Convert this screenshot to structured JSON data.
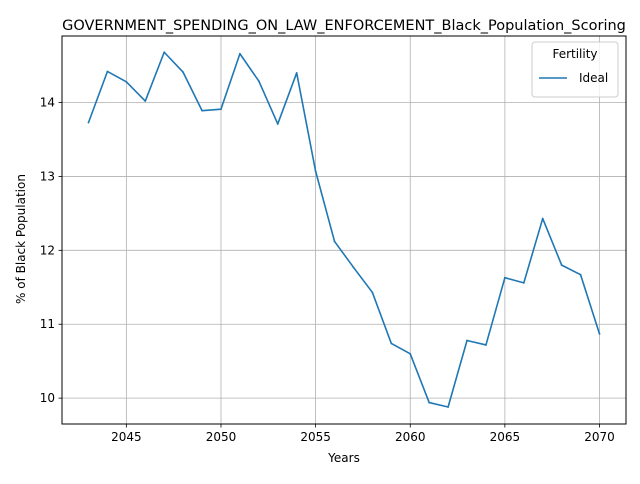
{
  "chart_data": {
    "type": "line",
    "title": "GOVERNMENT_SPENDING_ON_LAW_ENFORCEMENT_Black_Population_Scoring",
    "xlabel": "Years",
    "ylabel": "% of Black Population",
    "xlim": [
      2041.6,
      2071.4
    ],
    "ylim": [
      9.65,
      14.9
    ],
    "xticks": [
      2045,
      2050,
      2055,
      2060,
      2065,
      2070
    ],
    "yticks": [
      10,
      11,
      12,
      13,
      14
    ],
    "grid": true,
    "legend": {
      "title": "Fertility",
      "position": "top-right"
    },
    "series": [
      {
        "name": "Ideal",
        "color": "#1f77b4",
        "x": [
          2043,
          2044,
          2045,
          2046,
          2047,
          2048,
          2049,
          2050,
          2051,
          2052,
          2053,
          2054,
          2055,
          2056,
          2057,
          2058,
          2059,
          2060,
          2061,
          2062,
          2063,
          2064,
          2065,
          2066,
          2067,
          2068,
          2069,
          2070
        ],
        "y": [
          13.73,
          14.42,
          14.28,
          14.02,
          14.68,
          14.41,
          13.89,
          13.91,
          14.66,
          14.29,
          13.71,
          14.4,
          13.07,
          12.12,
          11.77,
          11.43,
          10.74,
          10.6,
          9.94,
          9.88,
          10.78,
          10.72,
          11.63,
          11.56,
          12.43,
          11.8,
          11.67,
          10.87
        ]
      }
    ]
  }
}
